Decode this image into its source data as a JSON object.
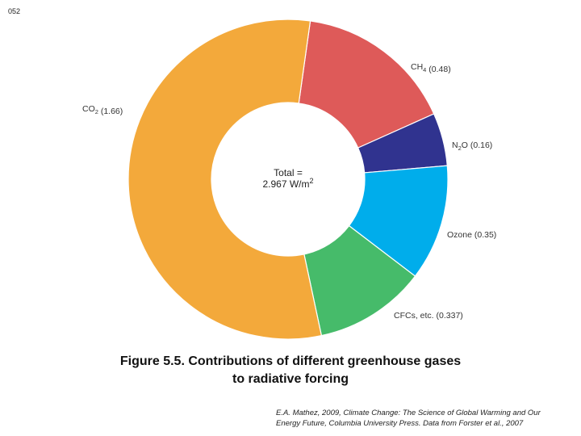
{
  "page_number": "052",
  "chart_data": {
    "type": "pie",
    "style": "donut",
    "center_label": {
      "line1": "Total =",
      "line2": "2.967 W/m",
      "superscript": "2"
    },
    "slices": [
      {
        "label_main": "CO",
        "label_sub": "2",
        "label_value": "(1.66)",
        "value": 1.66,
        "color": "#F3A93B"
      },
      {
        "label_main": "CH",
        "label_sub": "4",
        "label_value": "(0.48)",
        "value": 0.48,
        "color": "#DE5A59"
      },
      {
        "label_main": "N",
        "label_sub": "2",
        "label_tail": "O",
        "label_value": "(0.16)",
        "value": 0.16,
        "color": "#30338F"
      },
      {
        "label_main": "Ozone",
        "label_sub": "",
        "label_value": "(0.35)",
        "value": 0.35,
        "color": "#00ADEB"
      },
      {
        "label_main": "CFCs, etc.",
        "label_sub": "",
        "label_value": "(0.337)",
        "value": 0.337,
        "color": "#46BB6A"
      }
    ]
  },
  "caption": {
    "line1": "Figure 5.5.  Contributions of different greenhouse gases",
    "line2": "to radiative forcing"
  },
  "citation": {
    "line1": "E.A. Mathez, 2009, Climate Change: The Science of Global Warming and Our",
    "line2": "Energy Future, Columbia University Press. Data from Forster et al., 2007"
  }
}
